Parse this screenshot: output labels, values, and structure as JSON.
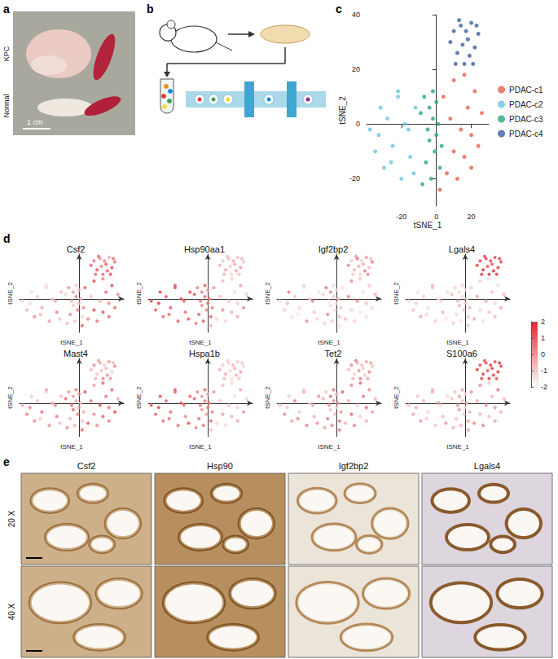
{
  "panel_labels": [
    "a",
    "b",
    "c",
    "d",
    "e"
  ],
  "panel_a": {
    "rows": [
      "KPC",
      "Normal"
    ],
    "scale_bar": "1 cm"
  },
  "chart_data": [
    {
      "type": "scatter",
      "x_label": "tSNE_1",
      "y_label": "tSNE_2",
      "xlim": [
        -40,
        30
      ],
      "ylim": [
        -30,
        40
      ],
      "xticks": [
        -20,
        0,
        20
      ],
      "yticks": [
        -20,
        0,
        20,
        40
      ],
      "grid": false,
      "legend": "right",
      "marker": "circle",
      "series": [
        {
          "name": "PDAC-c1",
          "color": "#e8604c",
          "x": [
            2,
            6,
            10,
            14,
            18,
            22,
            26,
            4,
            8,
            12,
            16,
            20,
            24,
            10,
            16,
            20
          ],
          "y": [
            -24,
            -18,
            -10,
            -2,
            6,
            12,
            4,
            10,
            2,
            -20,
            -12,
            -4,
            -8,
            16,
            18,
            -16
          ]
        },
        {
          "name": "PDAC-c2",
          "color": "#6cc4dc",
          "x": [
            -38,
            -35,
            -32,
            -30,
            -28,
            -25,
            -22,
            -20,
            -18,
            -15,
            -12,
            -33,
            -26,
            -22,
            -16,
            -13
          ],
          "y": [
            -2,
            -10,
            6,
            -16,
            2,
            -8,
            10,
            -20,
            0,
            -12,
            6,
            -4,
            -14,
            12,
            -2,
            -18
          ]
        },
        {
          "name": "PDAC-c3",
          "color": "#2ba58a",
          "x": [
            -8,
            -6,
            -4,
            -2,
            0,
            2,
            -7,
            -5,
            -3,
            -1,
            1,
            -9,
            -4,
            0,
            3,
            -2
          ],
          "y": [
            -22,
            -14,
            -6,
            2,
            8,
            -16,
            10,
            -2,
            -20,
            -10,
            0,
            4,
            6,
            -4,
            -8,
            12
          ]
        },
        {
          "name": "PDAC-c4",
          "color": "#3f5f9f",
          "x": [
            8,
            10,
            12,
            14,
            16,
            18,
            20,
            22,
            24,
            11,
            15,
            19,
            23,
            13,
            17,
            21
          ],
          "y": [
            30,
            34,
            26,
            36,
            22,
            31,
            37,
            28,
            33,
            22,
            29,
            25,
            36,
            38,
            34,
            22
          ]
        }
      ]
    },
    {
      "type": "scatter",
      "x_label": "tSNE_1",
      "y_label": "tSNE_2",
      "xlim": [
        -40,
        30
      ],
      "ylim": [
        -30,
        40
      ],
      "tick_labels": false,
      "grid": false,
      "color_range": [
        -2,
        2
      ],
      "color_ticks": [
        -2,
        -1,
        0,
        1,
        2
      ],
      "colors": [
        "#ffffff",
        "#e3262d"
      ],
      "features": [
        {
          "title": "Csf2",
          "values": [
            1.2,
            0.4,
            1.5,
            -0.5,
            0.9,
            1.4,
            0.2,
            1.1,
            -0.8,
            0.7,
            1.3,
            0.1,
            0.9,
            1.6,
            0.5,
            1.0,
            -1.2,
            -0.6,
            -1.5,
            0.3,
            -1,
            -0.4,
            -1.3,
            -0.2,
            -1.1,
            0.4,
            -0.9,
            -1.4,
            -0.7,
            -1.6,
            -0.3,
            -1,
            -0.8,
            0.2,
            -1.1,
            0.5,
            -0.3,
            -1.2,
            0.1,
            -0.6,
            -0.9,
            0.6,
            -0.4,
            -1.3,
            0,
            -0.7,
            0.3,
            -1,
            1.1,
            0.6,
            1.4,
            0.2,
            0.9,
            1.2,
            -0.3,
            1.5,
            0.7,
            1,
            0.4,
            1.3,
            0.8,
            1.1,
            0.5,
            1.6
          ]
        },
        {
          "title": "Hsp90aa1",
          "values": [
            -0.6,
            -1.2,
            0.2,
            -0.9,
            -1.4,
            -0.3,
            -1.1,
            0.1,
            -0.8,
            -1.3,
            -0.5,
            -1,
            0.3,
            -0.7,
            -1.2,
            -0.4,
            1.6,
            1.2,
            1.8,
            0.9,
            1.5,
            1.3,
            1.7,
            1.1,
            1.4,
            0.8,
            1.6,
            1.9,
            1.0,
            1.5,
            1.2,
            1.3,
            0.6,
            1.1,
            0.3,
            0.9,
            0.2,
            1.2,
            0.5,
            0.8,
            1,
            0.1,
            0.7,
            1.3,
            0.4,
            0.9,
            0.6,
            1.1,
            -0.5,
            -1,
            -0.2,
            -0.8,
            -1.3,
            -0.4,
            -0.9,
            0,
            -1.1,
            -0.6,
            -1.2,
            -0.3,
            -0.7,
            -1,
            -0.5,
            -0.9
          ]
        },
        {
          "title": "Igf2bp2",
          "values": [
            -1.5,
            -0.8,
            -1.2,
            0.4,
            -1.6,
            -1,
            -0.6,
            -1.4,
            0.6,
            -1.1,
            -1.7,
            -0.9,
            -1.3,
            0.2,
            -1,
            -1.5,
            -1.4,
            -1.1,
            0.5,
            -1.6,
            -0.9,
            -1.3,
            -1.7,
            0.3,
            -1.2,
            -1,
            -1.5,
            -0.7,
            -1.8,
            -1.1,
            0.4,
            -1.3,
            -1.2,
            0.5,
            -1.5,
            -1,
            -1.3,
            -0.8,
            0.7,
            -1.6,
            -1.1,
            -1.4,
            -0.6,
            -1.2,
            0.3,
            -1.5,
            -1,
            -1.3,
            0.3,
            -1,
            -0.6,
            0.8,
            -1.2,
            -0.4,
            0.2,
            -0.9,
            0.6,
            -1.1,
            -0.3,
            0.5,
            -0.8,
            0.1,
            -1.3,
            0.4
          ]
        },
        {
          "title": "Lgals4",
          "values": [
            -1,
            -0.5,
            -1.3,
            -0.2,
            -0.9,
            -1.5,
            -0.6,
            -1.1,
            -0.3,
            -1.4,
            -0.8,
            -1.2,
            -0.4,
            -1,
            -1.6,
            -0.7,
            -1.3,
            -0.9,
            -1.6,
            -0.4,
            -1.2,
            -1.5,
            -0.8,
            -1.1,
            -1.7,
            -0.6,
            -1.4,
            -1,
            -1.3,
            -0.5,
            -1.2,
            -1.6,
            -1.1,
            -1.4,
            -0.7,
            -1.3,
            -1.6,
            -0.9,
            -1.2,
            -0.5,
            -1.5,
            -1,
            -1.3,
            -0.8,
            -1.4,
            -1.1,
            -0.6,
            -1.2,
            1.8,
            1.5,
            2,
            1.6,
            1.9,
            1.4,
            1.7,
            1.8,
            1.6,
            1.9,
            1.5,
            2,
            1.7,
            1.8,
            1.6,
            1.9
          ]
        },
        {
          "title": "Mast4",
          "values": [
            0.9,
            1.3,
            0.2,
            1.5,
            0.6,
            1.1,
            -0.4,
            1.4,
            0.8,
            0.3,
            1.2,
            0.7,
            1.6,
            -0.2,
            1,
            0.5,
            -0.4,
            0.5,
            -1,
            0.2,
            -0.7,
            0.8,
            -1.2,
            0.1,
            -0.5,
            0.6,
            -0.9,
            0.3,
            -1.1,
            -0.2,
            0.4,
            -0.8,
            0.3,
            -0.6,
            0.8,
            -0.2,
            0.5,
            -0.9,
            0.1,
            0.7,
            -0.4,
            0.4,
            -0.7,
            0.9,
            -0.1,
            0.2,
            -0.5,
            0.6,
            -0.6,
            0.2,
            -1,
            -0.3,
            0.4,
            -0.8,
            -0.1,
            -1.2,
            0.3,
            -0.5,
            -0.9,
            0.1,
            -0.7,
            -0.2,
            -1.1,
            0
          ]
        },
        {
          "title": "Hspa1b",
          "values": [
            -0.8,
            -1.3,
            -0.2,
            -1,
            -1.5,
            -0.5,
            -1.2,
            0,
            -0.9,
            -1.4,
            -0.6,
            -1.1,
            0.1,
            -0.8,
            -1.3,
            -0.4,
            1.4,
            0.9,
            1.6,
            0.6,
            1.2,
            1,
            1.5,
            0.7,
            1.3,
            0.4,
            1.1,
            1.7,
            0.8,
            1.2,
            0.9,
            1.4,
            0.4,
            0.9,
            0,
            0.7,
            -0.1,
            1,
            0.3,
            0.6,
            0.8,
            -0.2,
            0.5,
            1.1,
            0.2,
            0.7,
            0.4,
            0.9,
            -0.7,
            -1.2,
            -0.4,
            -1,
            -1.5,
            -0.6,
            -1.1,
            -0.2,
            -1.3,
            -0.8,
            -1.4,
            -0.5,
            -0.9,
            -1.2,
            -0.7,
            -1
          ]
        },
        {
          "title": "Tet2",
          "values": [
            0.6,
            -0.5,
            1.1,
            -1,
            0.8,
            0.2,
            -0.7,
            1.2,
            -0.3,
            0.5,
            -1.1,
            0.9,
            -0.2,
            0.4,
            1,
            -0.6,
            -0.9,
            0.3,
            -1.2,
            -0.4,
            0.5,
            -1,
            -0.2,
            0.6,
            -1.3,
            -0.6,
            0.2,
            -0.8,
            0.4,
            -1.1,
            -0.3,
            0.1,
            -0.2,
            0.7,
            -0.9,
            0.3,
            -0.5,
            0.6,
            -1,
            0.1,
            0.4,
            -0.7,
            0.2,
            -0.4,
            0.8,
            -1.1,
            0,
            0.5,
            -0.8,
            0.3,
            -1.2,
            -0.4,
            0.6,
            -1,
            -0.2,
            0.4,
            -0.9,
            -0.5,
            0.1,
            -1.1,
            -0.3,
            0.5,
            -0.7,
            -0.1
          ]
        },
        {
          "title": "S100a6",
          "values": [
            -0.3,
            0.4,
            -0.7,
            0.1,
            -0.5,
            0.6,
            -0.9,
            0.2,
            -0.4,
            0.5,
            -0.8,
            0,
            -0.6,
            0.3,
            -1,
            -0.2,
            -0.8,
            -0.2,
            -1.1,
            0.1,
            -0.6,
            -1.3,
            -0.4,
            -0.9,
            0.2,
            -0.7,
            -1.2,
            -0.3,
            -1,
            -0.5,
            -1.4,
            0,
            -0.5,
            -1,
            0.1,
            -0.7,
            -1.2,
            -0.3,
            -0.9,
            0.2,
            -0.6,
            -1.1,
            -0.4,
            -0.8,
            0,
            -1.3,
            -0.6,
            -0.2,
            1.9,
            1.6,
            1.8,
            1.4,
            2,
            1.7,
            1.5,
            1.9,
            1.6,
            1.8,
            1.3,
            1.7,
            2,
            1.5,
            1.8,
            1.6
          ]
        }
      ]
    }
  ],
  "panel_e": {
    "columns": [
      "Csf2",
      "Hsp90",
      "Igf2bp2",
      "Lgals4"
    ],
    "rows": [
      "20 X",
      "40 X"
    ]
  }
}
